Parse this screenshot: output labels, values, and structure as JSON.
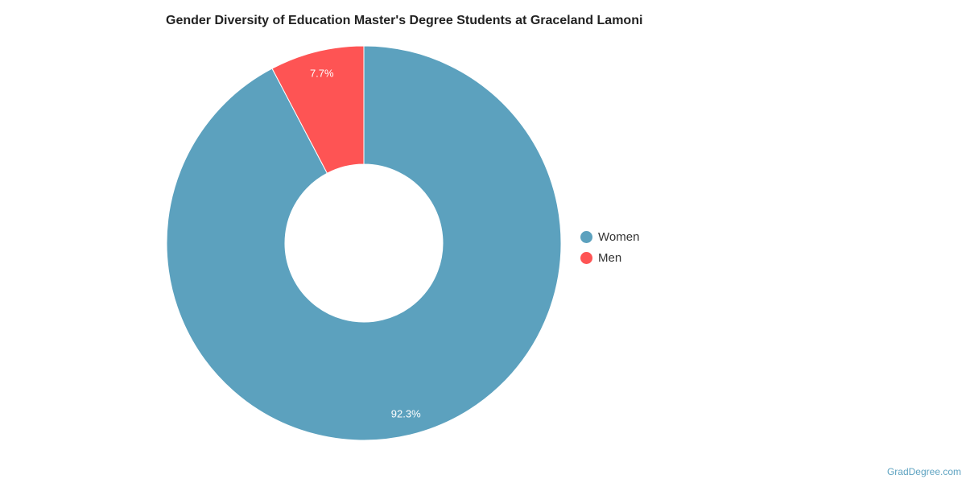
{
  "chart_data": {
    "type": "pie",
    "variant": "donut",
    "title": "Gender Diversity of Education Master's Degree Students at Graceland Lamoni",
    "slices": [
      {
        "label": "Women",
        "value": 92.3,
        "display": "92.3%",
        "color": "#5ca1be"
      },
      {
        "label": "Men",
        "value": 7.7,
        "display": "7.7%",
        "color": "#fe5454"
      }
    ],
    "legend_position": "right"
  },
  "credit": "GradDegree.com"
}
